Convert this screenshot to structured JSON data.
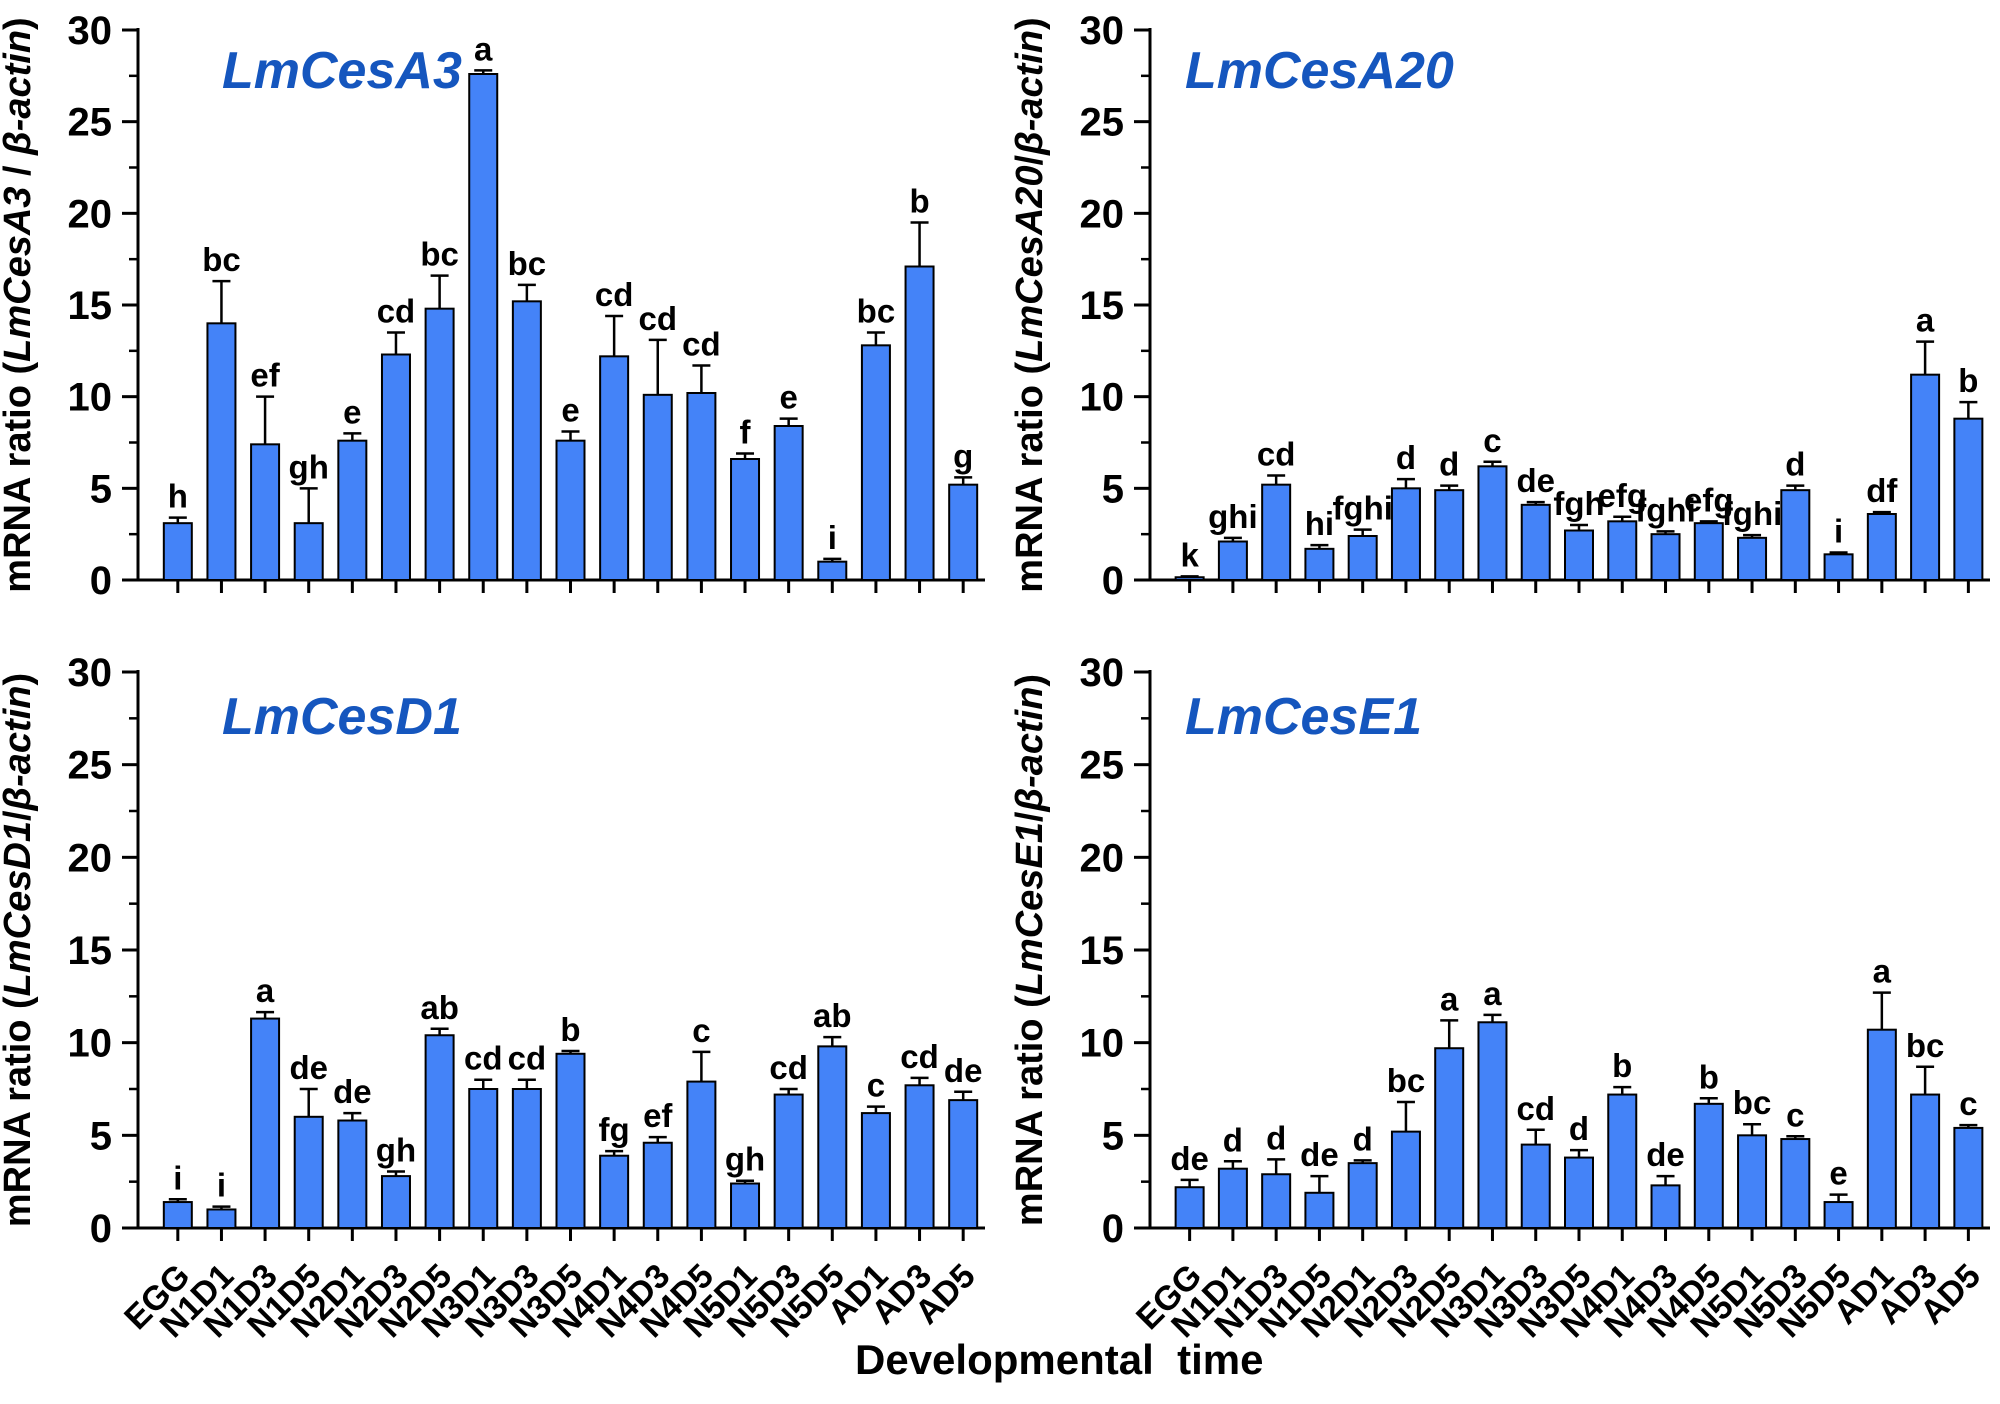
{
  "figure": {
    "xlabel": "Developmental  time",
    "background": "#ffffff",
    "bar_color": "#4483f8",
    "bar_border": "#000000",
    "title_color": "#1556be",
    "axis_color": "#000000"
  },
  "chart_data": {
    "type": "bar",
    "ylim": [
      0,
      30
    ],
    "yticks": [
      0,
      5,
      10,
      15,
      20,
      25,
      30
    ],
    "y_minor_step": 2.5,
    "legend": "none",
    "grid": false,
    "categories": [
      "EGG",
      "N1D1",
      "N1D3",
      "N1D5",
      "N2D1",
      "N2D3",
      "N2D5",
      "N3D1",
      "N3D3",
      "N3D5",
      "N4D1",
      "N4D3",
      "N4D5",
      "N5D1",
      "N5D3",
      "N5D5",
      "AD1",
      "AD3",
      "AD5"
    ],
    "charts": [
      {
        "title": "LmCesA3",
        "ylabel": {
          "prefix": "mRNA ratio (",
          "gene": "LmCesA3",
          "sep": " / ",
          "denominator": "β-actin",
          "suffix": ")"
        },
        "values": [
          3.1,
          14.0,
          7.4,
          3.1,
          7.6,
          12.3,
          14.8,
          27.6,
          15.2,
          7.6,
          12.2,
          10.1,
          10.2,
          6.6,
          8.4,
          1.0,
          12.8,
          17.1,
          5.2
        ],
        "errors": [
          0.3,
          2.3,
          2.6,
          1.9,
          0.4,
          1.2,
          1.8,
          0.2,
          0.9,
          0.5,
          2.2,
          3.0,
          1.5,
          0.3,
          0.4,
          0.15,
          0.7,
          2.4,
          0.4
        ],
        "letters": [
          "h",
          "bc",
          "ef",
          "gh",
          "e",
          "cd",
          "bc",
          "a",
          "bc",
          "e",
          "cd",
          "cd",
          "cd",
          "f",
          "e",
          "i",
          "bc",
          "b",
          "g"
        ]
      },
      {
        "title": "LmCesA20",
        "ylabel": {
          "prefix": "mRNA ratio (",
          "gene": "LmCesA20",
          "sep": "/",
          "denominator": "β-actin",
          "suffix": ")"
        },
        "values": [
          0.15,
          2.1,
          5.2,
          1.7,
          2.4,
          5.0,
          4.9,
          6.2,
          4.1,
          2.7,
          3.2,
          2.5,
          3.1,
          2.3,
          4.9,
          1.4,
          3.6,
          11.2,
          8.8
        ],
        "errors": [
          0.05,
          0.2,
          0.5,
          0.2,
          0.35,
          0.5,
          0.25,
          0.25,
          0.15,
          0.3,
          0.25,
          0.15,
          0.1,
          0.15,
          0.25,
          0.1,
          0.1,
          1.8,
          0.9
        ],
        "letters": [
          "k",
          "ghi",
          "cd",
          "hi",
          "fghi",
          "d",
          "d",
          "c",
          "de",
          "fgh",
          "efg",
          "fghi",
          "efg",
          "fghi",
          "d",
          "i",
          "df",
          "a",
          "b"
        ]
      },
      {
        "title": "LmCesD1",
        "ylabel": {
          "prefix": "mRNA ratio (",
          "gene": "LmCesD1",
          "sep": "/",
          "denominator": "β-actin",
          "suffix": ")"
        },
        "values": [
          1.4,
          1.0,
          11.3,
          6.0,
          5.8,
          2.8,
          10.4,
          7.5,
          7.5,
          9.4,
          3.9,
          4.6,
          7.9,
          2.4,
          7.2,
          9.8,
          6.2,
          7.7,
          6.9
        ],
        "errors": [
          0.15,
          0.15,
          0.35,
          1.5,
          0.4,
          0.25,
          0.35,
          0.5,
          0.5,
          0.15,
          0.25,
          0.3,
          1.6,
          0.15,
          0.3,
          0.5,
          0.35,
          0.4,
          0.45
        ],
        "letters": [
          "i",
          "i",
          "a",
          "de",
          "de",
          "gh",
          "ab",
          "cd",
          "cd",
          "b",
          "fg",
          "ef",
          "c",
          "gh",
          "cd",
          "ab",
          "c",
          "cd",
          "de"
        ]
      },
      {
        "title": "LmCesE1",
        "ylabel": {
          "prefix": "mRNA ratio (",
          "gene": "LmCesE1",
          "sep": "/",
          "denominator": "β-actin",
          "suffix": ")"
        },
        "values": [
          2.2,
          3.2,
          2.9,
          1.9,
          3.5,
          5.2,
          9.7,
          11.1,
          4.5,
          3.8,
          7.2,
          2.3,
          6.7,
          5.0,
          4.8,
          1.4,
          10.7,
          7.2,
          5.4
        ],
        "errors": [
          0.4,
          0.4,
          0.8,
          0.9,
          0.15,
          1.6,
          1.5,
          0.4,
          0.8,
          0.4,
          0.4,
          0.5,
          0.3,
          0.6,
          0.15,
          0.4,
          2.0,
          1.5,
          0.15
        ],
        "letters": [
          "de",
          "d",
          "d",
          "de",
          "d",
          "bc",
          "a",
          "a",
          "cd",
          "d",
          "b",
          "de",
          "b",
          "bc",
          "c",
          "e",
          "a",
          "bc",
          "c"
        ]
      }
    ]
  }
}
